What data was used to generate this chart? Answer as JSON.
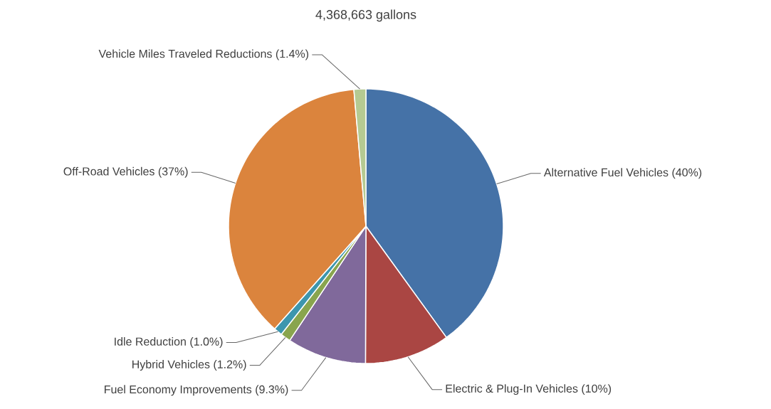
{
  "chart_data": {
    "type": "pie",
    "subtitle": "4,368,663 gallons",
    "categories": [
      "Alternative Fuel Vehicles (40%)",
      "Electric & Plug-In Vehicles (10%)",
      "Fuel Economy Improvements (9.3%)",
      "Hybrid Vehicles (1.2%)",
      "Idle Reduction (1.0%)",
      "Off-Road Vehicles (37%)",
      "Vehicle Miles Traveled Reductions (1.4%)"
    ],
    "values": [
      40,
      10,
      9.3,
      1.2,
      1.0,
      37,
      1.4
    ],
    "colors": [
      "#4572a7",
      "#aa4643",
      "#80699b",
      "#89a54e",
      "#3d96ae",
      "#db843d",
      "#b5ca92"
    ]
  }
}
